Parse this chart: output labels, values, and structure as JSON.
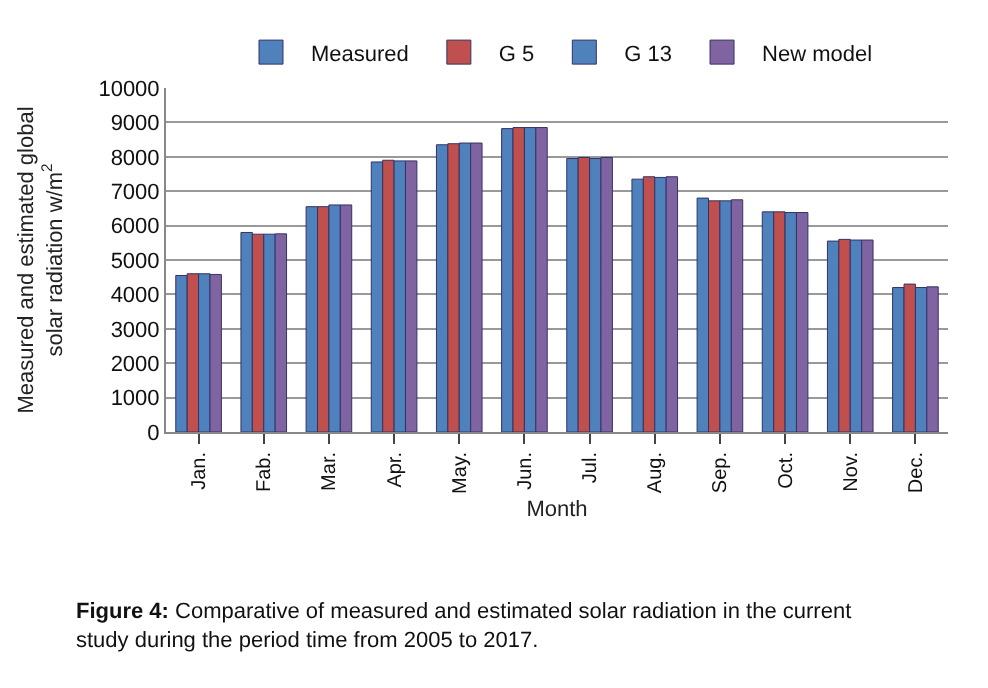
{
  "chart_data": {
    "type": "bar",
    "xlabel": "Month",
    "ylabel": "Measured and estimated global solar radiation w/m$^{2}$",
    "categories": [
      "Jan.",
      "Fab.",
      "Mar.",
      "Apr.",
      "May.",
      "Jun.",
      "Jul.",
      "Aug.",
      "Sep.",
      "Oct.",
      "Nov.",
      "Dec."
    ],
    "series": [
      {
        "name": "Measured",
        "color": "#4f81bd",
        "values": [
          4550,
          5800,
          6550,
          7850,
          8350,
          8820,
          7950,
          7350,
          6800,
          6400,
          5550,
          4200
        ]
      },
      {
        "name": "G 5",
        "color": "#c0504d",
        "values": [
          4600,
          5750,
          6550,
          7900,
          8380,
          8850,
          7980,
          7420,
          6720,
          6400,
          5600,
          4300
        ]
      },
      {
        "name": "G 13",
        "color": "#4f81bd",
        "values": [
          4600,
          5750,
          6600,
          7880,
          8400,
          8850,
          7950,
          7400,
          6720,
          6380,
          5580,
          4200
        ]
      },
      {
        "name": "New model",
        "color": "#8064a2",
        "values": [
          4580,
          5760,
          6600,
          7880,
          8400,
          8850,
          7980,
          7420,
          6750,
          6380,
          5580,
          4220
        ]
      }
    ],
    "ylim": [
      0,
      10000
    ],
    "yticks": [
      0,
      1000,
      2000,
      3000,
      4000,
      5000,
      6000,
      7000,
      8000,
      9000,
      10000
    ],
    "grid": "y",
    "legend": "top",
    "annotations": [
      "Figure 4: Comparative of measured and estimated solar radiation in the current study during the period time from 2005 to 2017."
    ]
  }
}
